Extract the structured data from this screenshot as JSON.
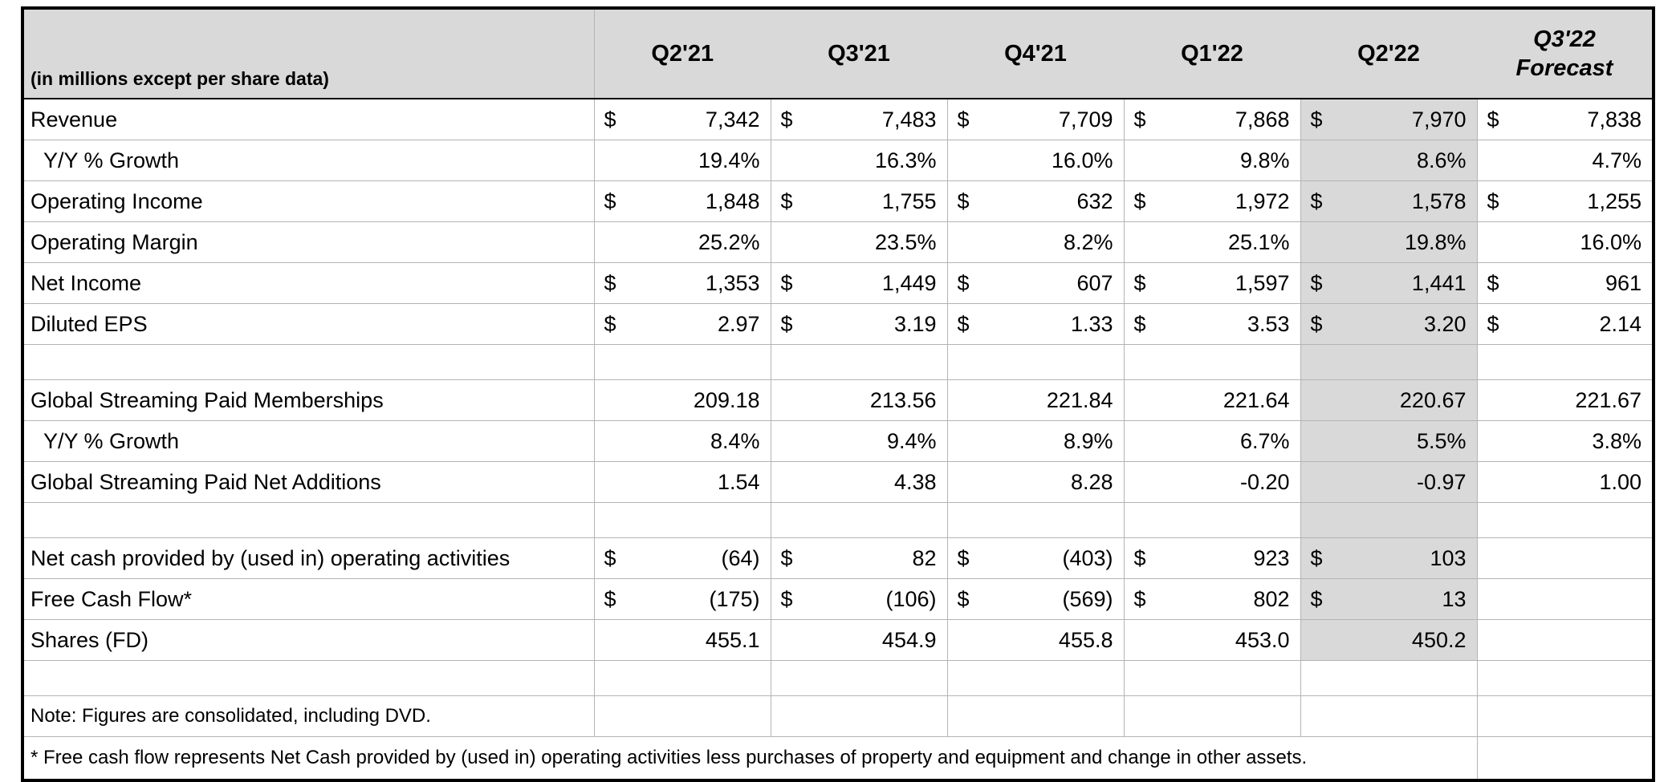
{
  "table": {
    "unit_note": "(in millions except per share data)",
    "columns": [
      "Q2'21",
      "Q3'21",
      "Q4'21",
      "Q1'22",
      "Q2'22"
    ],
    "forecast_column": {
      "line1": "Q3'22",
      "line2": "Forecast"
    },
    "highlight_column_label": "Q2'22",
    "highlight_col_index": 4,
    "highlight_last_row": 13,
    "colors": {
      "header_bg": "#d9d9d9",
      "highlight_bg": "#d9d9d9",
      "grid": "#b4b4b4",
      "outer_border": "#000000",
      "text": "#000000"
    },
    "rows": [
      {
        "label": "Revenue",
        "cells": [
          {
            "d": "$",
            "v": "7,342"
          },
          {
            "d": "$",
            "v": "7,483"
          },
          {
            "d": "$",
            "v": "7,709"
          },
          {
            "d": "$",
            "v": "7,868"
          },
          {
            "d": "$",
            "v": "7,970"
          },
          {
            "d": "$",
            "v": "7,838"
          }
        ]
      },
      {
        "label": "Y/Y % Growth",
        "indent": true,
        "cells": [
          {
            "v": "19.4%"
          },
          {
            "v": "16.3%"
          },
          {
            "v": "16.0%"
          },
          {
            "v": "9.8%"
          },
          {
            "v": "8.6%"
          },
          {
            "v": "4.7%"
          }
        ]
      },
      {
        "label": "Operating Income",
        "cells": [
          {
            "d": "$",
            "v": "1,848"
          },
          {
            "d": "$",
            "v": "1,755"
          },
          {
            "d": "$",
            "v": "632"
          },
          {
            "d": "$",
            "v": "1,972"
          },
          {
            "d": "$",
            "v": "1,578"
          },
          {
            "d": "$",
            "v": "1,255"
          }
        ]
      },
      {
        "label": "Operating Margin",
        "cells": [
          {
            "v": "25.2%"
          },
          {
            "v": "23.5%"
          },
          {
            "v": "8.2%"
          },
          {
            "v": "25.1%"
          },
          {
            "v": "19.8%"
          },
          {
            "v": "16.0%"
          }
        ]
      },
      {
        "label": "Net Income",
        "cells": [
          {
            "d": "$",
            "v": "1,353"
          },
          {
            "d": "$",
            "v": "1,449"
          },
          {
            "d": "$",
            "v": "607"
          },
          {
            "d": "$",
            "v": "1,597"
          },
          {
            "d": "$",
            "v": "1,441"
          },
          {
            "d": "$",
            "v": "961"
          }
        ]
      },
      {
        "label": "Diluted EPS",
        "cells": [
          {
            "d": "$",
            "v": "2.97"
          },
          {
            "d": "$",
            "v": "3.19"
          },
          {
            "d": "$",
            "v": "1.33"
          },
          {
            "d": "$",
            "v": "3.53"
          },
          {
            "d": "$",
            "v": "3.20"
          },
          {
            "d": "$",
            "v": "2.14"
          }
        ]
      },
      {
        "type": "blank"
      },
      {
        "label": "Global Streaming Paid Memberships",
        "cells": [
          {
            "v": "209.18"
          },
          {
            "v": "213.56"
          },
          {
            "v": "221.84"
          },
          {
            "v": "221.64"
          },
          {
            "v": "220.67"
          },
          {
            "v": "221.67"
          }
        ]
      },
      {
        "label": "Y/Y % Growth",
        "indent": true,
        "cells": [
          {
            "v": "8.4%"
          },
          {
            "v": "9.4%"
          },
          {
            "v": "8.9%"
          },
          {
            "v": "6.7%"
          },
          {
            "v": "5.5%"
          },
          {
            "v": "3.8%"
          }
        ]
      },
      {
        "label": "Global Streaming Paid Net Additions",
        "cells": [
          {
            "v": "1.54"
          },
          {
            "v": "4.38"
          },
          {
            "v": "8.28"
          },
          {
            "v": "-0.20"
          },
          {
            "v": "-0.97"
          },
          {
            "v": "1.00"
          }
        ]
      },
      {
        "type": "blank"
      },
      {
        "label": "Net cash provided by (used in) operating activities",
        "cells": [
          {
            "d": "$",
            "v": "(64)"
          },
          {
            "d": "$",
            "v": "82"
          },
          {
            "d": "$",
            "v": "(403)"
          },
          {
            "d": "$",
            "v": "923"
          },
          {
            "d": "$",
            "v": "103"
          },
          {}
        ]
      },
      {
        "label": "Free Cash Flow*",
        "cells": [
          {
            "d": "$",
            "v": "(175)"
          },
          {
            "d": "$",
            "v": "(106)"
          },
          {
            "d": "$",
            "v": "(569)"
          },
          {
            "d": "$",
            "v": "802"
          },
          {
            "d": "$",
            "v": "13"
          },
          {}
        ]
      },
      {
        "label": "Shares (FD)",
        "cells": [
          {
            "v": "455.1"
          },
          {
            "v": "454.9"
          },
          {
            "v": "455.8"
          },
          {
            "v": "453.0"
          },
          {
            "v": "450.2"
          },
          {}
        ]
      },
      {
        "type": "blank"
      },
      {
        "type": "note",
        "label": "Note: Figures are consolidated, including DVD."
      },
      {
        "type": "footnote",
        "label": "* Free cash flow represents Net Cash provided by (used in) operating activities less purchases of property and equipment and change in other assets."
      }
    ]
  }
}
